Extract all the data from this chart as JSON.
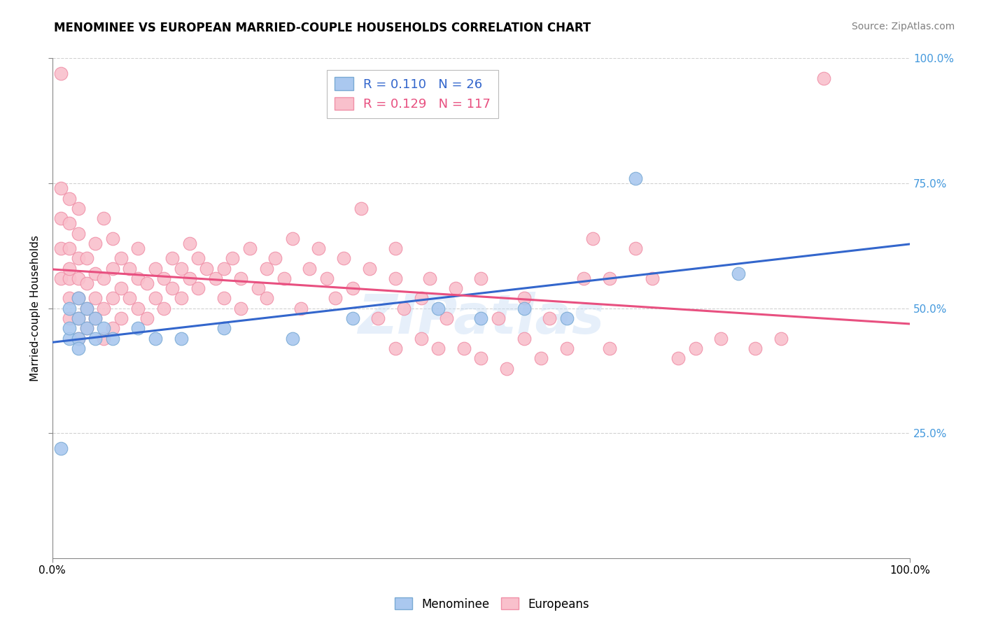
{
  "title": "MENOMINEE VS EUROPEAN MARRIED-COUPLE HOUSEHOLDS CORRELATION CHART",
  "source": "Source: ZipAtlas.com",
  "ylabel": "Married-couple Households",
  "xlim": [
    0.0,
    1.0
  ],
  "ylim": [
    0.0,
    1.0
  ],
  "xtick_positions": [
    0.0,
    1.0
  ],
  "xtick_labels": [
    "0.0%",
    "100.0%"
  ],
  "ytick_positions": [
    0.25,
    0.5,
    0.75,
    1.0
  ],
  "ytick_labels": [
    "25.0%",
    "50.0%",
    "75.0%",
    "100.0%"
  ],
  "menominee_color": "#aac8ef",
  "menominee_edge": "#7aaad4",
  "european_color": "#f9c0cc",
  "european_edge": "#f090a8",
  "trendline_menominee_color": "#3366cc",
  "trendline_european_color": "#e85080",
  "grid_color": "#cccccc",
  "right_tick_color": "#4499dd",
  "menominee_points": [
    [
      0.01,
      0.22
    ],
    [
      0.02,
      0.44
    ],
    [
      0.02,
      0.46
    ],
    [
      0.02,
      0.5
    ],
    [
      0.03,
      0.44
    ],
    [
      0.03,
      0.48
    ],
    [
      0.03,
      0.52
    ],
    [
      0.03,
      0.42
    ],
    [
      0.04,
      0.46
    ],
    [
      0.04,
      0.5
    ],
    [
      0.05,
      0.44
    ],
    [
      0.05,
      0.48
    ],
    [
      0.06,
      0.46
    ],
    [
      0.07,
      0.44
    ],
    [
      0.1,
      0.46
    ],
    [
      0.12,
      0.44
    ],
    [
      0.15,
      0.44
    ],
    [
      0.2,
      0.46
    ],
    [
      0.28,
      0.44
    ],
    [
      0.35,
      0.48
    ],
    [
      0.45,
      0.5
    ],
    [
      0.5,
      0.48
    ],
    [
      0.55,
      0.5
    ],
    [
      0.6,
      0.48
    ],
    [
      0.68,
      0.76
    ],
    [
      0.8,
      0.57
    ]
  ],
  "european_points": [
    [
      0.01,
      0.97
    ],
    [
      0.01,
      0.56
    ],
    [
      0.01,
      0.62
    ],
    [
      0.01,
      0.68
    ],
    [
      0.01,
      0.74
    ],
    [
      0.02,
      0.48
    ],
    [
      0.02,
      0.52
    ],
    [
      0.02,
      0.56
    ],
    [
      0.02,
      0.62
    ],
    [
      0.02,
      0.67
    ],
    [
      0.02,
      0.72
    ],
    [
      0.02,
      0.58
    ],
    [
      0.03,
      0.44
    ],
    [
      0.03,
      0.48
    ],
    [
      0.03,
      0.52
    ],
    [
      0.03,
      0.56
    ],
    [
      0.03,
      0.6
    ],
    [
      0.03,
      0.65
    ],
    [
      0.03,
      0.7
    ],
    [
      0.04,
      0.46
    ],
    [
      0.04,
      0.5
    ],
    [
      0.04,
      0.55
    ],
    [
      0.04,
      0.6
    ],
    [
      0.05,
      0.48
    ],
    [
      0.05,
      0.52
    ],
    [
      0.05,
      0.57
    ],
    [
      0.05,
      0.63
    ],
    [
      0.06,
      0.44
    ],
    [
      0.06,
      0.5
    ],
    [
      0.06,
      0.56
    ],
    [
      0.06,
      0.68
    ],
    [
      0.07,
      0.46
    ],
    [
      0.07,
      0.52
    ],
    [
      0.07,
      0.58
    ],
    [
      0.07,
      0.64
    ],
    [
      0.08,
      0.48
    ],
    [
      0.08,
      0.54
    ],
    [
      0.08,
      0.6
    ],
    [
      0.09,
      0.52
    ],
    [
      0.09,
      0.58
    ],
    [
      0.1,
      0.5
    ],
    [
      0.1,
      0.56
    ],
    [
      0.1,
      0.62
    ],
    [
      0.11,
      0.48
    ],
    [
      0.11,
      0.55
    ],
    [
      0.12,
      0.52
    ],
    [
      0.12,
      0.58
    ],
    [
      0.13,
      0.5
    ],
    [
      0.13,
      0.56
    ],
    [
      0.14,
      0.54
    ],
    [
      0.14,
      0.6
    ],
    [
      0.15,
      0.52
    ],
    [
      0.15,
      0.58
    ],
    [
      0.16,
      0.56
    ],
    [
      0.16,
      0.63
    ],
    [
      0.17,
      0.54
    ],
    [
      0.17,
      0.6
    ],
    [
      0.18,
      0.58
    ],
    [
      0.19,
      0.56
    ],
    [
      0.2,
      0.52
    ],
    [
      0.2,
      0.58
    ],
    [
      0.21,
      0.6
    ],
    [
      0.22,
      0.5
    ],
    [
      0.22,
      0.56
    ],
    [
      0.23,
      0.62
    ],
    [
      0.24,
      0.54
    ],
    [
      0.25,
      0.52
    ],
    [
      0.25,
      0.58
    ],
    [
      0.26,
      0.6
    ],
    [
      0.27,
      0.56
    ],
    [
      0.28,
      0.64
    ],
    [
      0.29,
      0.5
    ],
    [
      0.3,
      0.58
    ],
    [
      0.31,
      0.62
    ],
    [
      0.32,
      0.56
    ],
    [
      0.33,
      0.52
    ],
    [
      0.34,
      0.6
    ],
    [
      0.35,
      0.54
    ],
    [
      0.36,
      0.7
    ],
    [
      0.37,
      0.58
    ],
    [
      0.38,
      0.48
    ],
    [
      0.4,
      0.42
    ],
    [
      0.4,
      0.56
    ],
    [
      0.4,
      0.62
    ],
    [
      0.41,
      0.5
    ],
    [
      0.43,
      0.44
    ],
    [
      0.43,
      0.52
    ],
    [
      0.44,
      0.56
    ],
    [
      0.45,
      0.42
    ],
    [
      0.46,
      0.48
    ],
    [
      0.47,
      0.54
    ],
    [
      0.48,
      0.42
    ],
    [
      0.5,
      0.4
    ],
    [
      0.5,
      0.56
    ],
    [
      0.52,
      0.48
    ],
    [
      0.53,
      0.38
    ],
    [
      0.55,
      0.44
    ],
    [
      0.55,
      0.52
    ],
    [
      0.57,
      0.4
    ],
    [
      0.58,
      0.48
    ],
    [
      0.6,
      0.42
    ],
    [
      0.62,
      0.56
    ],
    [
      0.63,
      0.64
    ],
    [
      0.65,
      0.42
    ],
    [
      0.65,
      0.56
    ],
    [
      0.68,
      0.62
    ],
    [
      0.7,
      0.56
    ],
    [
      0.73,
      0.4
    ],
    [
      0.75,
      0.42
    ],
    [
      0.78,
      0.44
    ],
    [
      0.82,
      0.42
    ],
    [
      0.85,
      0.44
    ],
    [
      0.9,
      0.96
    ]
  ]
}
